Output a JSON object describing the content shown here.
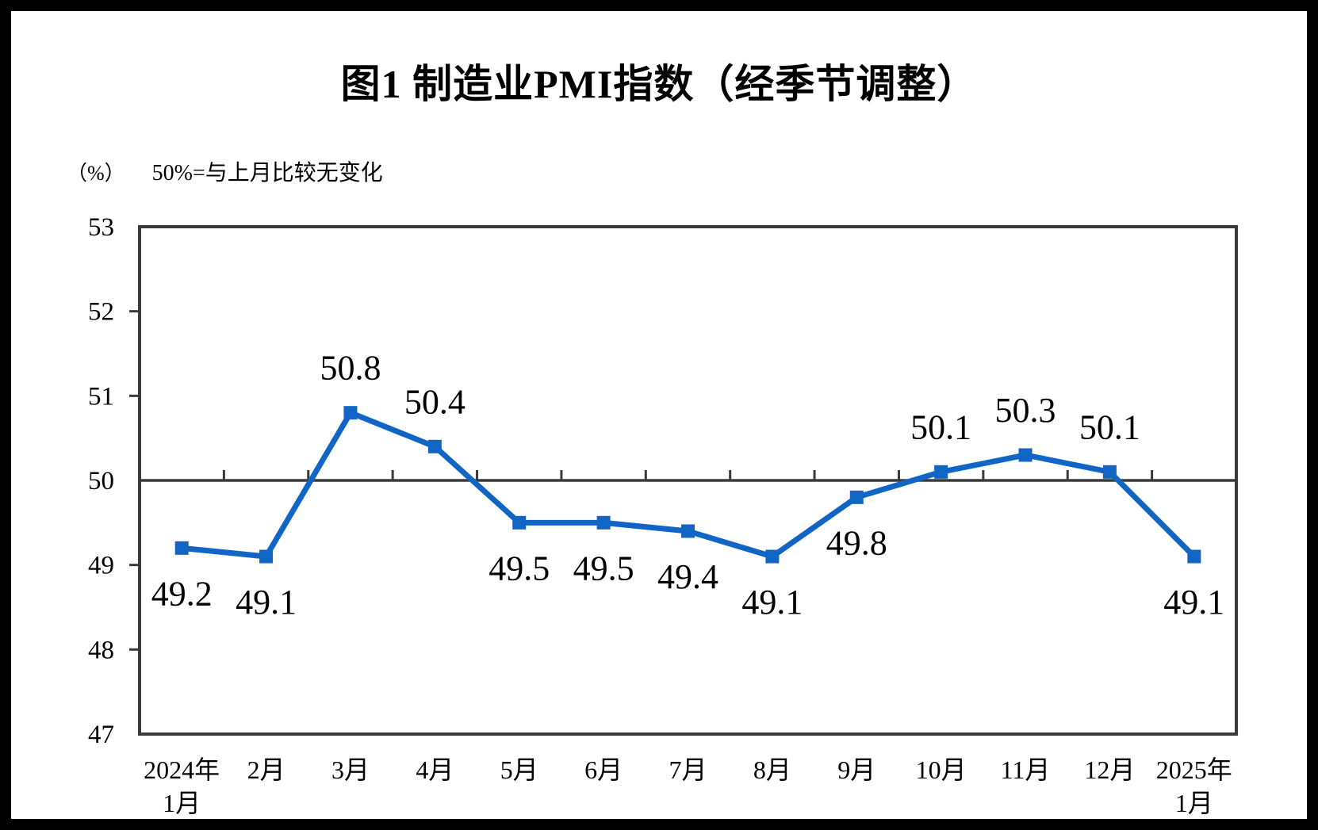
{
  "chart_data": {
    "type": "line",
    "title": "图1 制造业PMI指数（经季节调整）",
    "unit_label": "（%）",
    "note": "50%=与上月比较无变化",
    "categories": [
      [
        "2024年",
        "1月"
      ],
      [
        "2月"
      ],
      [
        "3月"
      ],
      [
        "4月"
      ],
      [
        "5月"
      ],
      [
        "6月"
      ],
      [
        "7月"
      ],
      [
        "8月"
      ],
      [
        "9月"
      ],
      [
        "10月"
      ],
      [
        "11月"
      ],
      [
        "12月"
      ],
      [
        "2025年",
        "1月"
      ]
    ],
    "series": [
      {
        "name": "制造业PMI",
        "values": [
          49.2,
          49.1,
          50.8,
          50.4,
          49.5,
          49.5,
          49.4,
          49.1,
          49.8,
          50.1,
          50.3,
          50.1,
          49.1
        ]
      }
    ],
    "ylim": [
      47,
      53
    ],
    "yticks": [
      47,
      48,
      49,
      50,
      51,
      52,
      53
    ],
    "reference_y": 50,
    "grid": false,
    "legend_position": "none",
    "marker": "square",
    "colors": {
      "line": "#1065C5",
      "axis": "#3A3A3A",
      "text": "#000000"
    }
  }
}
